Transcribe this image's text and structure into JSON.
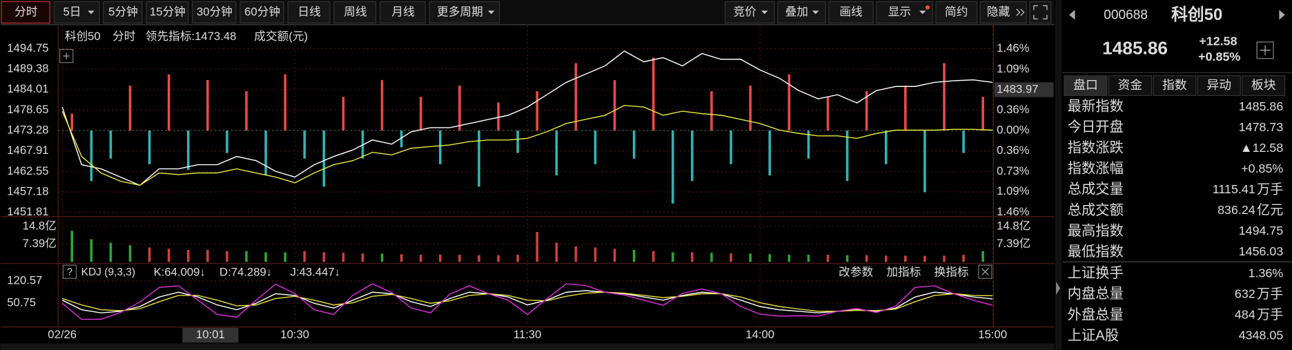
{
  "toolbar": {
    "left": [
      "分时",
      "5日",
      "5分钟",
      "15分钟",
      "30分钟",
      "60分钟",
      "日线",
      "周线",
      "月线",
      "更多周期"
    ],
    "right": [
      "竞价",
      "叠加",
      "画线",
      "显示",
      "简约",
      "隐藏"
    ]
  },
  "chart_data": [
    {
      "type": "line",
      "title": "科创50",
      "mode": "分时",
      "volume_title": "成交额(元)",
      "x": [
        0,
        5,
        10,
        15,
        20,
        25,
        30,
        35,
        40,
        45,
        50,
        55,
        60,
        65,
        70,
        75,
        80,
        85,
        90,
        95,
        100,
        105,
        110,
        115,
        120,
        125,
        130,
        135,
        140,
        145,
        150,
        155,
        160,
        165,
        170,
        175,
        180,
        185,
        190,
        195,
        200,
        205,
        210,
        215,
        220,
        225,
        230,
        235,
        240
      ],
      "series": [
        {
          "name": "科创50",
          "color": "#ffffff",
          "values": [
            1479.43,
            1464.33,
            1463.25,
            1461.09,
            1458.93,
            1463.25,
            1463.25,
            1464.33,
            1464.33,
            1466.48,
            1465.4,
            1462.6,
            1461.09,
            1464.33,
            1466.48,
            1468.21,
            1470.8,
            1469.72,
            1472.96,
            1474.03,
            1474.03,
            1475.11,
            1476.19,
            1477.27,
            1479.43,
            1482.67,
            1485.9,
            1488.06,
            1490.22,
            1494.1,
            1491.3,
            1492.38,
            1490.22,
            1493.46,
            1491.94,
            1491.94,
            1489.14,
            1486.98,
            1483.75,
            1481.59,
            1482.67,
            1480.51,
            1483.75,
            1484.82,
            1484.82,
            1485.9,
            1486.33,
            1486.55,
            1485.9
          ]
        },
        {
          "name": "领先指标:1473.48",
          "color": "#e8e83c",
          "values": [
            1478.35,
            1466.48,
            1462.17,
            1460.01,
            1458.93,
            1462.17,
            1461.74,
            1462.17,
            1462.17,
            1463.25,
            1462.17,
            1461.09,
            1459.58,
            1462.17,
            1464.33,
            1465.4,
            1467.56,
            1466.91,
            1468.64,
            1469.07,
            1469.5,
            1470.37,
            1470.8,
            1470.8,
            1471.23,
            1472.96,
            1475.11,
            1476.19,
            1477.27,
            1479.86,
            1479.43,
            1477.27,
            1478.35,
            1477.7,
            1477.27,
            1476.19,
            1475.11,
            1473.39,
            1472.52,
            1471.88,
            1471.88,
            1471.23,
            1472.52,
            1473.39,
            1473.39,
            1473.39,
            1473.6,
            1473.6,
            1473.39
          ]
        }
      ],
      "xlim": [
        0,
        240
      ],
      "xticks": [
        {
          "value": 0,
          "label": "02/26"
        },
        {
          "value": 60,
          "label": "10:30"
        },
        {
          "value": 120,
          "label": "11:30"
        },
        {
          "value": 180,
          "label": "14:00"
        },
        {
          "value": 240,
          "label": "15:00"
        }
      ],
      "ylim": [
        1451.81,
        1494.75
      ],
      "yticks": [
        1494.75,
        1489.38,
        1484.01,
        1478.65,
        1473.28,
        1467.91,
        1462.55,
        1457.18,
        1451.81
      ],
      "y2lim": [
        -1.46,
        1.46
      ],
      "y2ticks": [
        {
          "value": 1.46,
          "label": "1.46%"
        },
        {
          "value": 1.09,
          "label": "1.09%"
        },
        {
          "value": 0.73,
          "label": "0.73%"
        },
        {
          "value": 0.36,
          "label": "0.36%"
        },
        {
          "value": 0,
          "label": "0.00%"
        },
        {
          "value": -0.36,
          "label": "0.36%"
        },
        {
          "value": -0.73,
          "label": "0.73%"
        },
        {
          "value": -1.09,
          "label": "1.09%"
        },
        {
          "value": -1.46,
          "label": "1.46%"
        }
      ],
      "crosshair": {
        "x": 31,
        "x_label": "10:01",
        "y": 1483.97
      },
      "grid": true
    },
    {
      "type": "bar",
      "x": [
        2.5,
        7.5,
        12.5,
        17.5,
        22.5,
        27.5,
        32.5,
        37.5,
        42.5,
        47.5,
        52.5,
        57.5,
        62.5,
        67.5,
        72.5,
        77.5,
        82.5,
        87.5,
        92.5,
        97.5,
        102.5,
        107.5,
        112.5,
        117.5,
        122.5,
        127.5,
        132.5,
        137.5,
        142.5,
        147.5,
        152.5,
        157.5,
        162.5,
        167.5,
        172.5,
        177.5,
        182.5,
        187.5,
        192.5,
        197.5,
        202.5,
        207.5,
        212.5,
        217.5,
        222.5,
        227.5,
        232.5,
        237.5
      ],
      "values": [
        0.3,
        -0.9,
        -0.5,
        0.8,
        -0.6,
        1.0,
        -0.7,
        0.9,
        -0.4,
        0.7,
        -0.8,
        1.0,
        -0.5,
        -1.0,
        0.6,
        -0.5,
        0.9,
        -0.3,
        0.6,
        -0.6,
        0.8,
        -1.0,
        0.5,
        -0.4,
        0.7,
        -0.8,
        1.2,
        -0.6,
        0.9,
        -0.5,
        1.3,
        -1.3,
        -0.9,
        0.7,
        -0.6,
        0.8,
        -0.8,
        1.0,
        -0.5,
        0.6,
        -0.9,
        0.7,
        -0.6,
        0.8,
        -1.1,
        1.2,
        -0.4,
        0.6
      ],
      "ylim": [
        -1.46,
        1.46
      ],
      "up_color": "#e84b4b",
      "down_color": "#32b4b4"
    },
    {
      "type": "bar",
      "x": [
        2.5,
        7.5,
        12.5,
        17.5,
        22.5,
        27.5,
        32.5,
        37.5,
        42.5,
        47.5,
        52.5,
        57.5,
        62.5,
        67.5,
        72.5,
        77.5,
        82.5,
        87.5,
        92.5,
        97.5,
        102.5,
        107.5,
        112.5,
        117.5,
        122.5,
        127.5,
        132.5,
        137.5,
        142.5,
        147.5,
        152.5,
        157.5,
        162.5,
        167.5,
        172.5,
        177.5,
        182.5,
        187.5,
        192.5,
        197.5,
        202.5,
        207.5,
        212.5,
        217.5,
        222.5,
        227.5,
        232.5,
        237.5
      ],
      "values": [
        13.0,
        9.5,
        8.0,
        7.0,
        6.0,
        5.5,
        5.0,
        5.0,
        4.5,
        4.5,
        4.0,
        4.0,
        4.5,
        4.0,
        3.8,
        3.5,
        3.5,
        3.2,
        3.0,
        3.0,
        3.0,
        2.8,
        2.8,
        3.0,
        12.5,
        8.0,
        6.5,
        6.0,
        5.5,
        5.0,
        4.5,
        4.0,
        4.0,
        3.8,
        3.5,
        3.5,
        3.2,
        3.0,
        3.0,
        3.0,
        2.8,
        2.8,
        2.6,
        2.6,
        2.5,
        2.6,
        3.0,
        4.5
      ],
      "ylim": [
        0,
        14.8
      ],
      "yticks": [
        {
          "value": 14.8,
          "label": "14.8亿"
        },
        {
          "value": 7.39,
          "label": "7.39亿"
        }
      ],
      "up_color": "#d04040",
      "down_color": "#2fa43a"
    },
    {
      "type": "line",
      "title": "KDJ (9,3,3)",
      "actions": [
        "改参数",
        "加指标",
        "换指标"
      ],
      "x": [
        0,
        5,
        10,
        15,
        20,
        25,
        30,
        35,
        40,
        45,
        50,
        55,
        60,
        65,
        70,
        75,
        80,
        85,
        90,
        95,
        100,
        105,
        110,
        115,
        120,
        125,
        130,
        135,
        140,
        145,
        150,
        155,
        160,
        165,
        170,
        175,
        180,
        185,
        190,
        195,
        200,
        205,
        210,
        215,
        220,
        225,
        230,
        235,
        240
      ],
      "series": [
        {
          "name": "K:64.009↓",
          "color": "#ffffff",
          "values": [
            60,
            30,
            20,
            25,
            40,
            70,
            85,
            70,
            45,
            30,
            50,
            80,
            75,
            50,
            35,
            60,
            85,
            80,
            55,
            40,
            65,
            85,
            80,
            70,
            45,
            60,
            85,
            90,
            85,
            80,
            70,
            60,
            75,
            85,
            80,
            60,
            40,
            30,
            25,
            20,
            25,
            30,
            25,
            35,
            70,
            85,
            80,
            70,
            64
          ]
        },
        {
          "name": "D:74.289↓",
          "color": "#e8e03c",
          "values": [
            65,
            45,
            30,
            27,
            33,
            55,
            75,
            75,
            60,
            42,
            45,
            65,
            72,
            60,
            45,
            52,
            72,
            78,
            65,
            50,
            58,
            75,
            80,
            75,
            60,
            58,
            72,
            82,
            85,
            82,
            75,
            68,
            72,
            80,
            80,
            70,
            52,
            40,
            32,
            25,
            25,
            28,
            27,
            32,
            55,
            75,
            80,
            75,
            74
          ]
        },
        {
          "name": "J:43.447↓",
          "color": "#e030e0",
          "values": [
            50,
            0,
            0,
            21,
            54,
            100,
            105,
            60,
            15,
            6,
            60,
            110,
            81,
            30,
            15,
            76,
            111,
            84,
            35,
            20,
            79,
            105,
            80,
            60,
            15,
            64,
            111,
            106,
            85,
            76,
            60,
            44,
            81,
            95,
            80,
            40,
            16,
            10,
            11,
            10,
            25,
            34,
            21,
            41,
            100,
            105,
            80,
            60,
            44
          ]
        }
      ],
      "xlim": [
        0,
        240
      ],
      "ylim": [
        -20,
        130
      ],
      "yticks": [
        120.57,
        50.75
      ]
    }
  ],
  "side_panel": {
    "code": "000688",
    "name": "科创50",
    "price": "1485.86",
    "change": "+12.58",
    "change_pct": "+0.85%",
    "tabs": [
      "盘口",
      "资金",
      "指数",
      "异动",
      "板块"
    ],
    "rows": [
      {
        "label": "最新指数",
        "value": "1485.86"
      },
      {
        "label": "今日开盘",
        "value": "1478.73"
      },
      {
        "label": "指数涨跌",
        "value": "▲12.58"
      },
      {
        "label": "指数涨幅",
        "value": "+0.85%"
      },
      {
        "label": "总成交量",
        "value": "1115.41",
        "unit": "万手"
      },
      {
        "label": "总成交额",
        "value": "836.24",
        "unit": "亿元"
      },
      {
        "label": "最高指数",
        "value": "1494.75"
      },
      {
        "label": "最低指数",
        "value": "1456.03"
      },
      {
        "label": "上证换手",
        "value": "1.36%"
      },
      {
        "label": "内盘总量",
        "value": "632",
        "unit": "万手"
      },
      {
        "label": "外盘总量",
        "value": "484",
        "unit": "万手"
      },
      {
        "label": "上证A股",
        "value": "4348.05"
      }
    ]
  }
}
